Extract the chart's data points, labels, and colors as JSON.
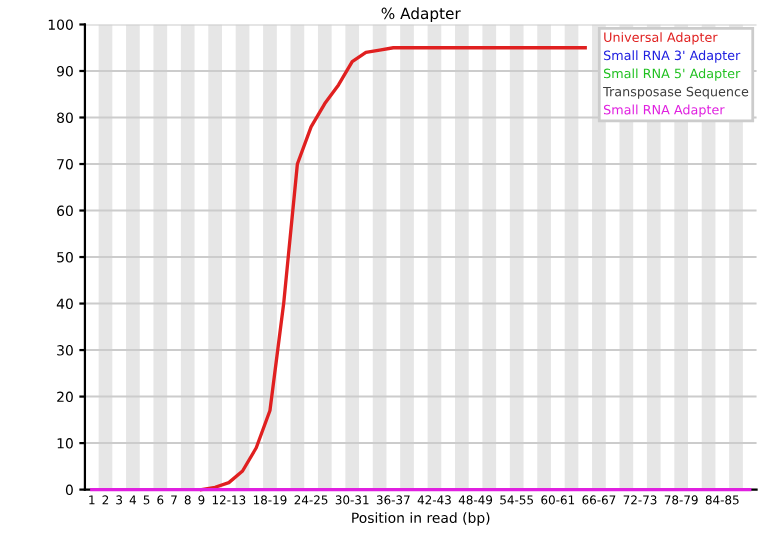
{
  "chart_data": {
    "type": "line",
    "title": "% Adapter",
    "xlabel": "Position in read (bp)",
    "categories": [
      "1",
      "2",
      "3",
      "4",
      "5",
      "6",
      "7",
      "8",
      "9",
      null,
      "12-13",
      null,
      null,
      "18-19",
      null,
      null,
      "24-25",
      null,
      null,
      "30-31",
      null,
      null,
      "36-37",
      null,
      null,
      "42-43",
      null,
      null,
      "48-49",
      null,
      null,
      "54-55",
      null,
      null,
      "60-61",
      null,
      null,
      "66-67",
      null,
      null,
      "72-73",
      null,
      null,
      "78-79",
      null,
      null,
      "84-85",
      null,
      null
    ],
    "series": [
      {
        "name": "Universal Adapter",
        "color": "#e02020",
        "values": [
          null,
          null,
          null,
          null,
          null,
          null,
          null,
          null,
          0,
          0.5,
          1.5,
          4,
          9,
          17,
          40,
          70,
          78,
          83,
          87,
          92,
          94,
          94.5,
          95,
          95,
          95,
          95,
          95,
          95,
          95,
          95,
          95,
          95,
          95,
          95,
          95,
          95,
          95,
          null,
          null,
          null,
          null,
          null,
          null,
          null,
          null,
          null,
          null,
          null,
          null
        ]
      },
      {
        "name": "Small RNA 3' Adapter",
        "color": "#2020e0",
        "values": [
          null,
          null,
          null,
          null,
          null,
          null,
          null,
          null,
          null,
          null,
          null,
          null,
          null,
          null,
          null,
          null,
          null,
          null,
          null,
          null,
          null,
          null,
          null,
          null,
          null,
          null,
          null,
          null,
          null,
          null,
          null,
          null,
          null,
          null,
          null,
          null,
          null,
          null,
          null,
          null,
          null,
          null,
          null,
          null,
          null,
          null,
          null,
          null,
          null
        ]
      },
      {
        "name": "Small RNA 5' Adapter",
        "color": "#20c020",
        "values": [
          null,
          null,
          null,
          null,
          null,
          null,
          null,
          null,
          null,
          null,
          null,
          null,
          null,
          null,
          null,
          null,
          null,
          null,
          null,
          null,
          null,
          null,
          null,
          null,
          null,
          null,
          null,
          null,
          null,
          null,
          null,
          null,
          null,
          null,
          null,
          null,
          null,
          null,
          null,
          null,
          null,
          null,
          null,
          null,
          null,
          null,
          null,
          null,
          null
        ]
      },
      {
        "name": "Transposase Sequence",
        "color": "#404040",
        "values": [
          null,
          null,
          null,
          null,
          null,
          null,
          null,
          null,
          null,
          null,
          null,
          null,
          null,
          null,
          null,
          null,
          null,
          null,
          null,
          null,
          null,
          null,
          null,
          null,
          null,
          null,
          null,
          null,
          null,
          null,
          null,
          null,
          null,
          null,
          null,
          null,
          null,
          null,
          null,
          null,
          null,
          null,
          null,
          null,
          null,
          null,
          null,
          null,
          null
        ]
      },
      {
        "name": "Small RNA Adapter",
        "color": "#e020e0",
        "values": [
          0,
          0,
          0,
          0,
          0,
          0,
          0,
          0,
          0,
          0,
          0,
          0,
          0,
          0,
          0,
          0,
          0,
          0,
          0,
          0,
          0,
          0,
          0,
          0,
          0,
          0,
          0,
          0,
          0,
          0,
          0,
          0,
          0,
          0,
          0,
          0,
          0,
          0,
          0,
          0,
          0,
          0,
          0,
          0,
          0,
          0,
          0,
          0,
          0
        ]
      }
    ],
    "ylim": [
      0,
      100
    ],
    "yticks": [
      0,
      10,
      20,
      30,
      40,
      50,
      60,
      70,
      80,
      90,
      100
    ],
    "grid": "y",
    "legend": "top right",
    "marker": "none",
    "line_style": "solid"
  }
}
